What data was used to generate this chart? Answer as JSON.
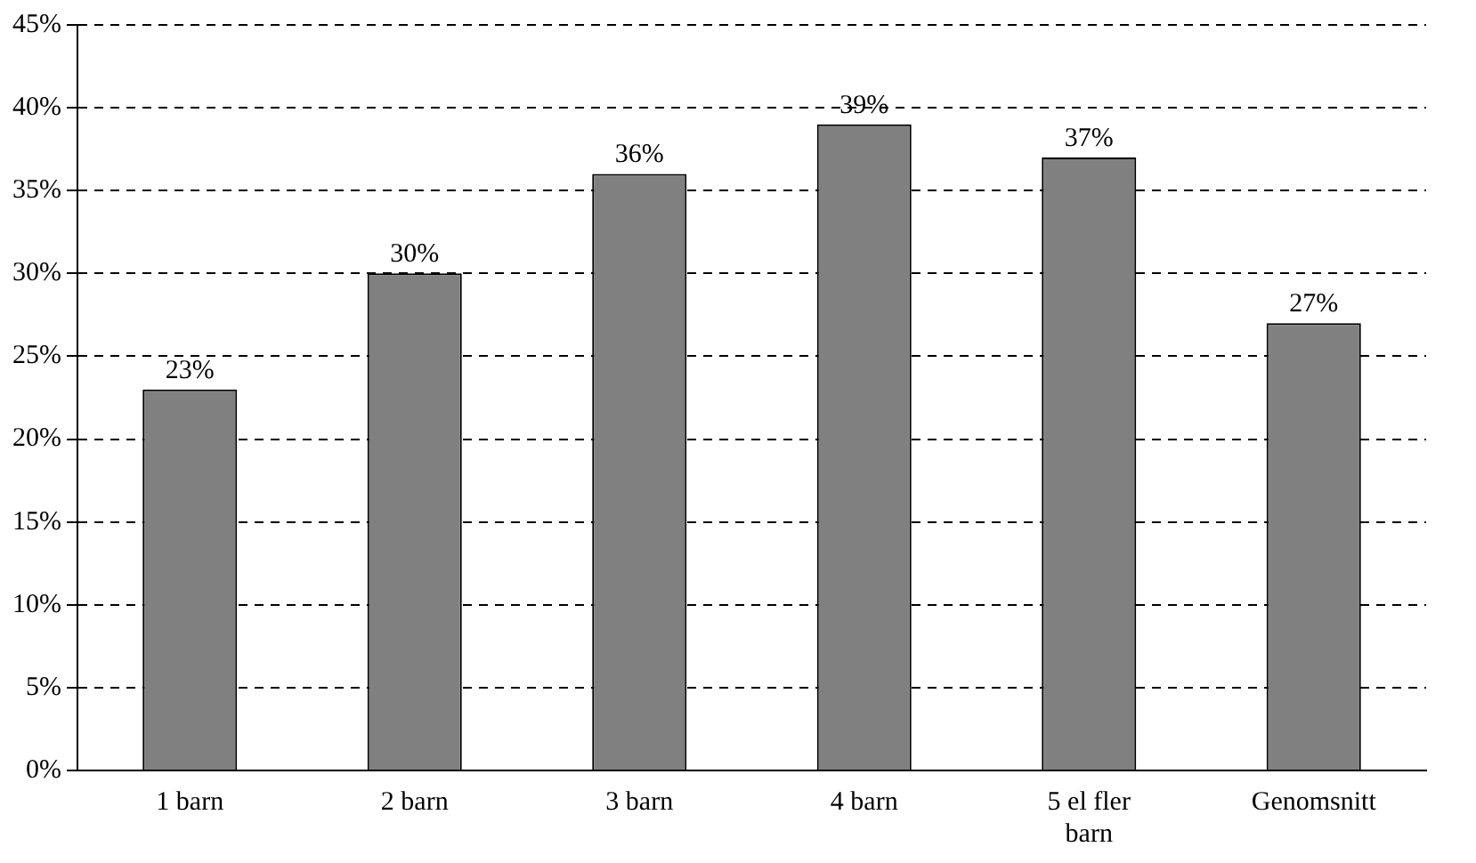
{
  "chart_data": {
    "type": "bar",
    "categories": [
      "1 barn",
      "2 barn",
      "3 barn",
      "4 barn",
      "5 el fler barn",
      "Genomsnitt"
    ],
    "values": [
      23,
      30,
      36,
      39,
      37,
      27
    ],
    "value_labels": [
      "23%",
      "30%",
      "36%",
      "39%",
      "37%",
      "27%"
    ],
    "color": "#808080",
    "ylim": [
      0,
      45
    ],
    "yticks": [
      {
        "value": 0,
        "label": "0%"
      },
      {
        "value": 5,
        "label": "5%"
      },
      {
        "value": 10,
        "label": "10%"
      },
      {
        "value": 15,
        "label": "15%"
      },
      {
        "value": 20,
        "label": "20%"
      },
      {
        "value": 25,
        "label": "25%"
      },
      {
        "value": 30,
        "label": "30%"
      },
      {
        "value": 35,
        "label": "35%"
      },
      {
        "value": 40,
        "label": "40%"
      },
      {
        "value": 45,
        "label": "45%"
      }
    ],
    "grid": "y",
    "line_style": "dashed",
    "legend": false
  }
}
